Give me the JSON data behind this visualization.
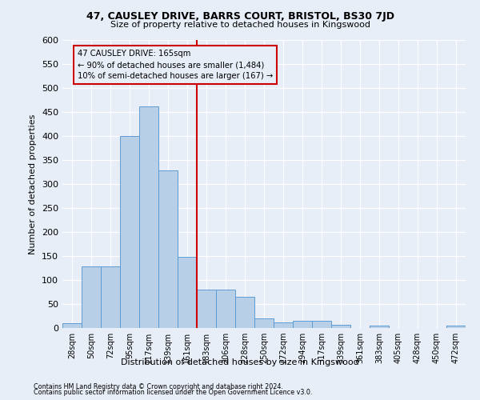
{
  "title1": "47, CAUSLEY DRIVE, BARRS COURT, BRISTOL, BS30 7JD",
  "title2": "Size of property relative to detached houses in Kingswood",
  "xlabel": "Distribution of detached houses by size in Kingswood",
  "ylabel": "Number of detached properties",
  "footnote1": "Contains HM Land Registry data © Crown copyright and database right 2024.",
  "footnote2": "Contains public sector information licensed under the Open Government Licence v3.0.",
  "bar_labels": [
    "28sqm",
    "50sqm",
    "72sqm",
    "95sqm",
    "117sqm",
    "139sqm",
    "161sqm",
    "183sqm",
    "206sqm",
    "228sqm",
    "250sqm",
    "272sqm",
    "294sqm",
    "317sqm",
    "339sqm",
    "361sqm",
    "383sqm",
    "405sqm",
    "428sqm",
    "450sqm",
    "472sqm"
  ],
  "bar_values": [
    10,
    128,
    128,
    400,
    462,
    328,
    148,
    80,
    80,
    65,
    20,
    12,
    15,
    15,
    7,
    0,
    5,
    0,
    0,
    0,
    5
  ],
  "bar_color": "#b8cfe8",
  "bar_edgecolor": "#5b9bd5",
  "vline_color": "#cc0000",
  "annotation_title": "47 CAUSLEY DRIVE: 165sqm",
  "annotation_line1": "← 90% of detached houses are smaller (1,484)",
  "annotation_line2": "10% of semi-detached houses are larger (167) →",
  "annotation_box_edgecolor": "#cc0000",
  "ylim": [
    0,
    600
  ],
  "yticks": [
    0,
    50,
    100,
    150,
    200,
    250,
    300,
    350,
    400,
    450,
    500,
    550,
    600
  ],
  "background_color": "#e8eef8",
  "grid_color": "#ffffff"
}
